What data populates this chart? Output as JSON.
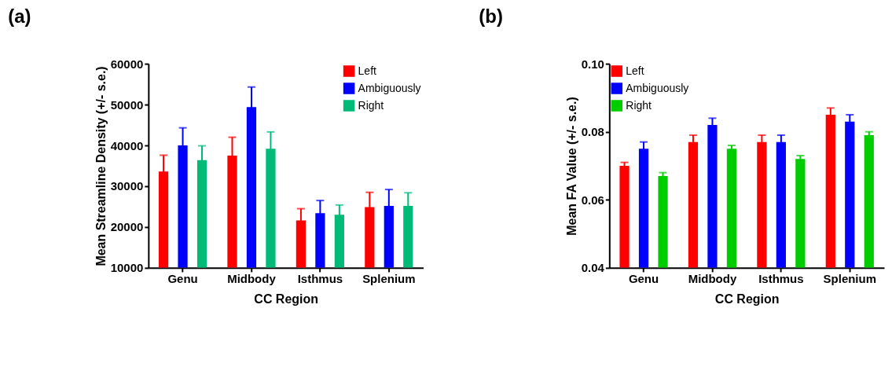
{
  "chart_data": [
    {
      "type": "bar",
      "title": "(a)",
      "xlabel": "CC Region",
      "ylabel": "Mean Streamline Density (+/- s.e.)",
      "categories": [
        "Genu",
        "Midbody",
        "Isthmus",
        "Splenium"
      ],
      "series": [
        {
          "name": "Left",
          "color": "#ff0000",
          "values": [
            33600,
            37500,
            21600,
            24900
          ],
          "errors": [
            4000,
            4500,
            2900,
            3600
          ]
        },
        {
          "name": "Ambiguously",
          "color": "#0000ff",
          "values": [
            40000,
            49400,
            23400,
            25200
          ],
          "errors": [
            4300,
            4900,
            3100,
            4000
          ]
        },
        {
          "name": "Right",
          "color": "#00bb77",
          "values": [
            36400,
            39200,
            23000,
            25200
          ],
          "errors": [
            3500,
            4100,
            2400,
            3200
          ]
        }
      ],
      "ylim": [
        10000,
        60000
      ],
      "yticks": [
        10000,
        20000,
        30000,
        40000,
        50000,
        60000
      ],
      "grid": false,
      "legend": "top right"
    },
    {
      "type": "bar",
      "title": "(b)",
      "xlabel": "CC Region",
      "ylabel": "Mean FA Value (+/- s.e.)",
      "categories": [
        "Genu",
        "Midbody",
        "Isthmus",
        "Splenium"
      ],
      "series": [
        {
          "name": "Left",
          "color": "#ff0000",
          "values": [
            0.07,
            0.077,
            0.077,
            0.085
          ],
          "errors": [
            0.001,
            0.002,
            0.002,
            0.002
          ]
        },
        {
          "name": "Ambiguously",
          "color": "#0000ff",
          "values": [
            0.075,
            0.082,
            0.077,
            0.083
          ],
          "errors": [
            0.002,
            0.002,
            0.002,
            0.002
          ]
        },
        {
          "name": "Right",
          "color": "#00cc00",
          "values": [
            0.067,
            0.075,
            0.072,
            0.079
          ],
          "errors": [
            0.001,
            0.001,
            0.001,
            0.001
          ]
        }
      ],
      "ylim": [
        0.04,
        0.1
      ],
      "yticks": [
        {
          "value": 0.04,
          "label": "0.04"
        },
        {
          "value": 0.06,
          "label": "0.06"
        },
        {
          "value": 0.08,
          "label": "0.08"
        },
        {
          "value": 0.1,
          "label": "0.10"
        }
      ],
      "grid": false,
      "legend": "top left"
    }
  ]
}
